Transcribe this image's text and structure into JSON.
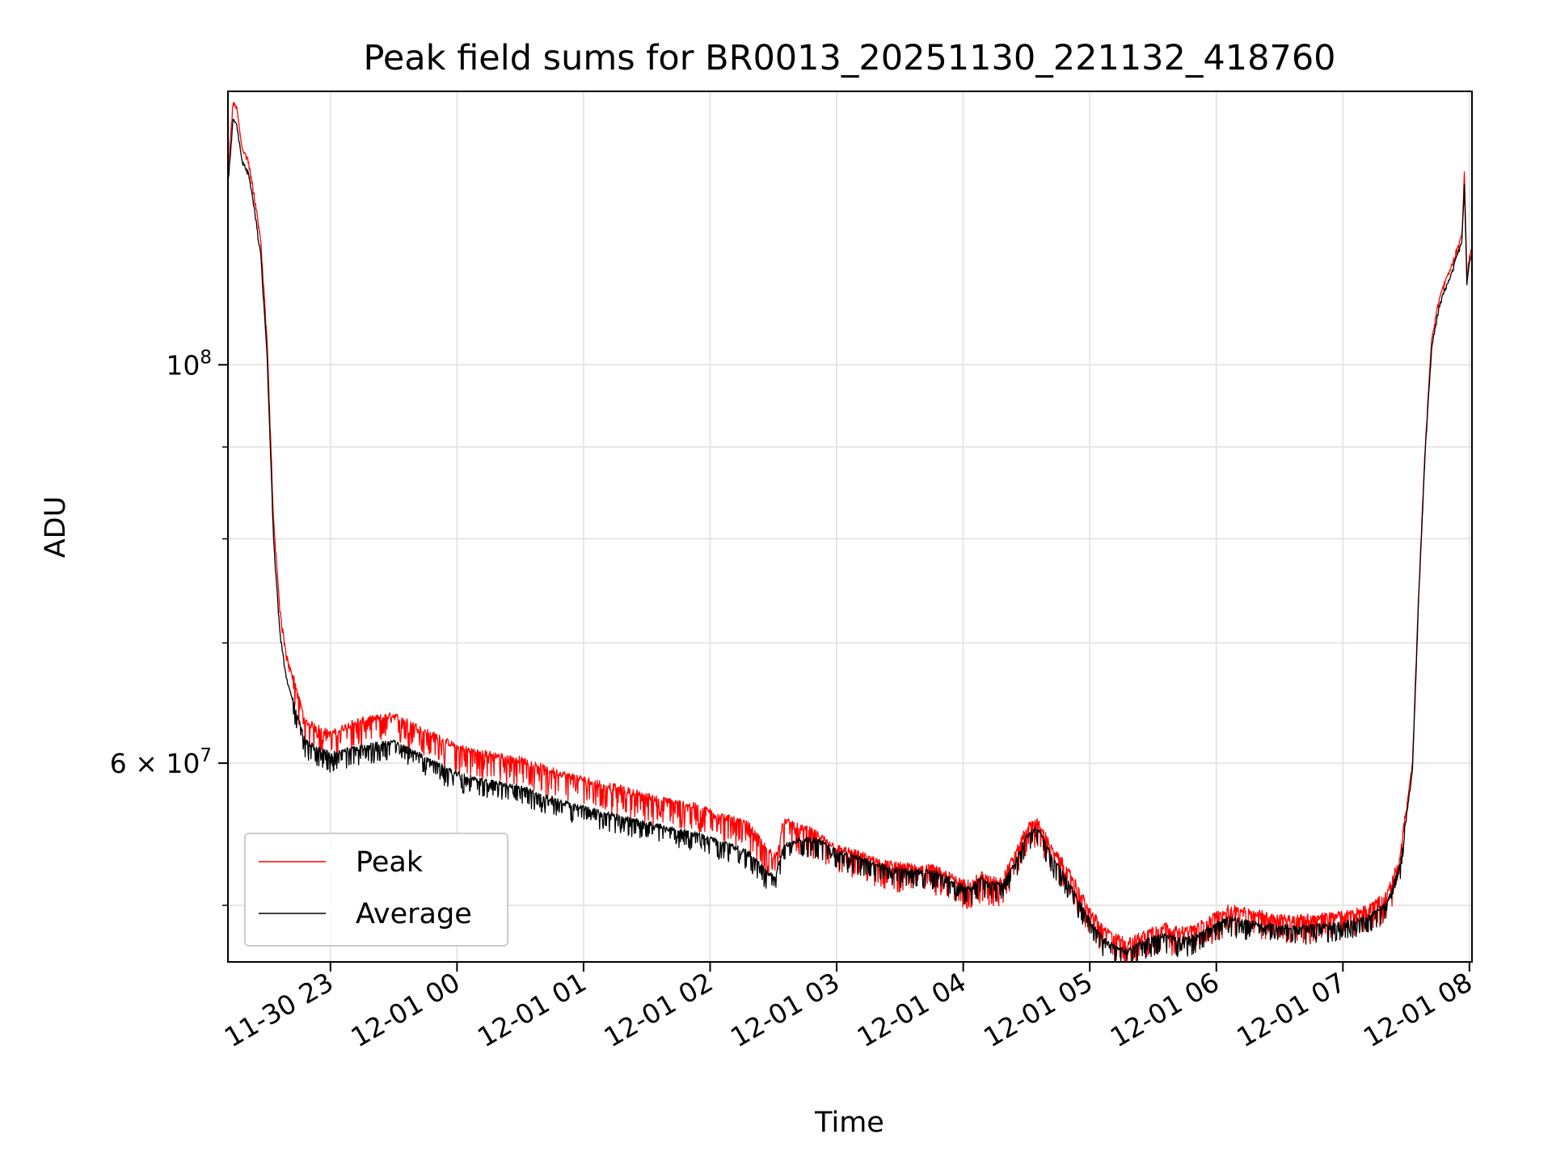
{
  "chart_data": {
    "type": "line",
    "title": "Peak field sums for BR0013_20251130_221132_418760",
    "xlabel": "Time",
    "ylabel": "ADU",
    "yscale": "log",
    "grid": true,
    "legend_position": "lower-left",
    "x_unit": "hours since 2025-11-30 22:00",
    "xlim": [
      0.19,
      10.02
    ],
    "ylim": [
      46500000,
      142000000
    ],
    "x_ticks": [
      {
        "value": 1,
        "label": "11-30 23"
      },
      {
        "value": 2,
        "label": "12-01 00"
      },
      {
        "value": 3,
        "label": "12-01 01"
      },
      {
        "value": 4,
        "label": "12-01 02"
      },
      {
        "value": 5,
        "label": "12-01 03"
      },
      {
        "value": 6,
        "label": "12-01 04"
      },
      {
        "value": 7,
        "label": "12-01 05"
      },
      {
        "value": 8,
        "label": "12-01 06"
      },
      {
        "value": 9,
        "label": "12-01 07"
      },
      {
        "value": 10,
        "label": "12-01 08"
      }
    ],
    "y_major_ticks": [
      {
        "value": 100000000,
        "base": "10",
        "exp": "8",
        "mult": ""
      },
      {
        "value": 60000000,
        "base": "10",
        "exp": "7",
        "mult": "6 × "
      }
    ],
    "y_minor_ticks": [
      50000000,
      70000000,
      80000000,
      90000000
    ],
    "series": [
      {
        "name": "Peak",
        "color": "#ff0000",
        "noise": 0.03,
        "x": [
          0.19,
          0.23,
          0.26,
          0.3,
          0.35,
          0.4,
          0.45,
          0.5,
          0.55,
          0.6,
          0.65,
          0.7,
          0.8,
          0.9,
          1.0,
          1.2,
          1.5,
          1.7,
          2.0,
          2.2,
          2.5,
          2.8,
          3.0,
          3.3,
          3.6,
          3.9,
          4.1,
          4.3,
          4.45,
          4.52,
          4.58,
          4.65,
          4.7,
          4.8,
          4.9,
          5.0,
          5.2,
          5.4,
          5.6,
          5.8,
          5.95,
          6.05,
          6.15,
          6.2,
          6.3,
          6.4,
          6.5,
          6.58,
          6.62,
          6.7,
          6.8,
          6.9,
          7.0,
          7.1,
          7.2,
          7.3,
          7.4,
          7.5,
          7.6,
          7.7,
          7.8,
          7.9,
          8.0,
          8.1,
          8.2,
          8.3,
          8.4,
          8.5,
          8.7,
          9.0,
          9.2,
          9.35,
          9.45,
          9.55,
          9.6,
          9.65,
          9.7,
          9.75,
          9.8,
          9.85,
          9.9,
          9.94,
          9.96,
          9.98,
          10.0,
          10.02
        ],
        "y": [
          128000000,
          140000000,
          139000000,
          132000000,
          130000000,
          124000000,
          117000000,
          103000000,
          82000000,
          73000000,
          69000000,
          67000000,
          63000000,
          62500000,
          62000000,
          63000000,
          63500000,
          62500000,
          61000000,
          60500000,
          60000000,
          59000000,
          58500000,
          57800000,
          57000000,
          56500000,
          55800000,
          55200000,
          53500000,
          53000000,
          55500000,
          55300000,
          55000000,
          54800000,
          54200000,
          53600000,
          53100000,
          52500000,
          52300000,
          52200000,
          51400000,
          51200000,
          51800000,
          51500000,
          51400000,
          53000000,
          55000000,
          55500000,
          55000000,
          53500000,
          52500000,
          51000000,
          49500000,
          48400000,
          47800000,
          47500000,
          47900000,
          48300000,
          48500000,
          48200000,
          48300000,
          48700000,
          49200000,
          49600000,
          49500000,
          49300000,
          49200000,
          49000000,
          49000000,
          49200000,
          49600000,
          50500000,
          53000000,
          60000000,
          75000000,
          90000000,
          103000000,
          108000000,
          111000000,
          113000000,
          116000000,
          118000000,
          128000000,
          112000000,
          115000000,
          116000000
        ]
      },
      {
        "name": "Average",
        "color": "#000000",
        "noise": 0.02,
        "x": [
          0.19,
          0.23,
          0.26,
          0.3,
          0.35,
          0.4,
          0.45,
          0.5,
          0.55,
          0.6,
          0.65,
          0.7,
          0.8,
          0.9,
          1.0,
          1.2,
          1.5,
          1.7,
          2.0,
          2.2,
          2.5,
          2.8,
          3.0,
          3.3,
          3.6,
          3.9,
          4.1,
          4.3,
          4.45,
          4.52,
          4.58,
          4.65,
          4.7,
          4.8,
          4.9,
          5.0,
          5.2,
          5.4,
          5.6,
          5.8,
          5.95,
          6.05,
          6.15,
          6.2,
          6.3,
          6.4,
          6.5,
          6.58,
          6.62,
          6.7,
          6.8,
          6.9,
          7.0,
          7.1,
          7.2,
          7.3,
          7.4,
          7.5,
          7.6,
          7.7,
          7.8,
          7.9,
          8.0,
          8.1,
          8.2,
          8.3,
          8.4,
          8.5,
          8.7,
          9.0,
          9.2,
          9.35,
          9.45,
          9.55,
          9.6,
          9.65,
          9.7,
          9.75,
          9.8,
          9.85,
          9.9,
          9.94,
          9.96,
          9.98,
          10.0,
          10.02
        ],
        "y": [
          126000000,
          137000000,
          136000000,
          130000000,
          128000000,
          122000000,
          115000000,
          101000000,
          80000000,
          71000000,
          67000000,
          65000000,
          61500000,
          61000000,
          60500000,
          61000000,
          61500000,
          60500000,
          59000000,
          58500000,
          58000000,
          57000000,
          56500000,
          55800000,
          55200000,
          54600000,
          54000000,
          53400000,
          52000000,
          51800000,
          53800000,
          54000000,
          54200000,
          54300000,
          54000000,
          53400000,
          52900000,
          52300000,
          52100000,
          52000000,
          51200000,
          51000000,
          51600000,
          51300000,
          51200000,
          52500000,
          54500000,
          55000000,
          54600000,
          53000000,
          51800000,
          50300000,
          48900000,
          47800000,
          47200000,
          47000000,
          47500000,
          47800000,
          48000000,
          47700000,
          47800000,
          48200000,
          48700000,
          49000000,
          48900000,
          48700000,
          48600000,
          48500000,
          48500000,
          48700000,
          49100000,
          50000000,
          52500000,
          59500000,
          74500000,
          89500000,
          102000000,
          107000000,
          110000000,
          112000000,
          115000000,
          117000000,
          126000000,
          111000000,
          114000000,
          115000000
        ]
      }
    ]
  }
}
